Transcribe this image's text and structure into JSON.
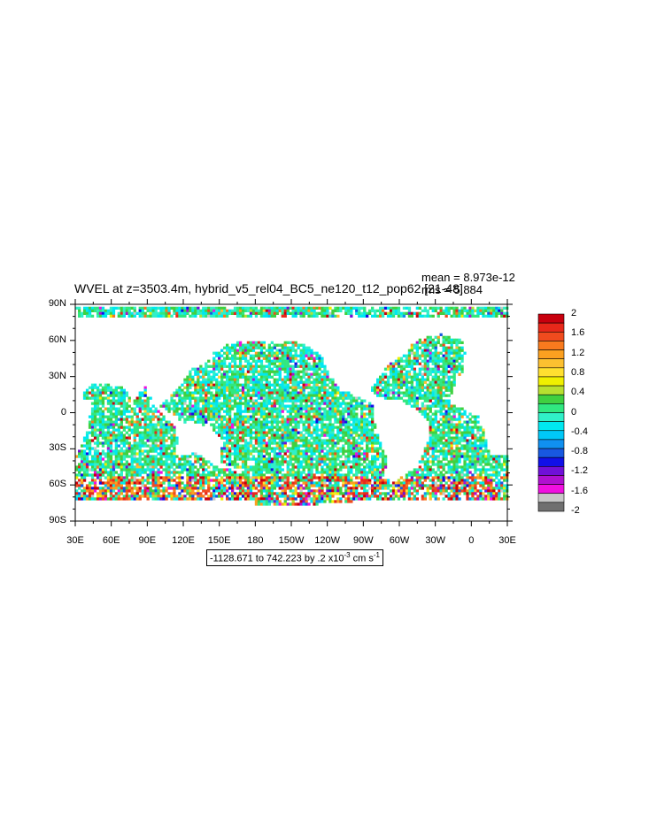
{
  "header": {
    "title": "WVEL at z=3503.4m, hybrid_v5_rel04_BC5_ne120_t12_pop62 [21-48]",
    "mean_text": "mean = 8.973e-12",
    "rms_text": "rms = 5.884"
  },
  "range_text": "-1128.671 to 742.223 by .2 x10",
  "range_exponent": "-3",
  "range_units": " cm s",
  "range_units_exponent": "-1",
  "chart_data": {
    "type": "heatmap",
    "title": "WVEL at z=3503.4m, hybrid_v5_rel04_BC5_ne120_t12_pop62 [21-48]",
    "x_ticks": [
      "30E",
      "60E",
      "90E",
      "120E",
      "150E",
      "180",
      "150W",
      "120W",
      "90W",
      "60W",
      "30W",
      "0",
      "30E"
    ],
    "y_ticks": [
      "90N",
      "60N",
      "30N",
      "0",
      "30S",
      "60S",
      "90S"
    ],
    "xlim": [
      30,
      390
    ],
    "ylim": [
      -90,
      90
    ],
    "colorbar": {
      "labels": [
        "2",
        "1.6",
        "1.2",
        "0.8",
        "0.4",
        "0",
        "-0.4",
        "-0.8",
        "-1.2",
        "-1.6",
        "-2"
      ],
      "colors": [
        "#c8000e",
        "#e8281a",
        "#f04b1e",
        "#f87a1e",
        "#fba020",
        "#fcc030",
        "#ffe030",
        "#f0f000",
        "#b8e030",
        "#40d040",
        "#30e880",
        "#30f0c8",
        "#00e8f0",
        "#00c8f8",
        "#1090f0",
        "#1858e0",
        "#1010e8",
        "#7010d8",
        "#b010d0",
        "#f010e0",
        "#c8c8c8",
        "#707070"
      ]
    },
    "mean": "8.973e-12",
    "rms": "5.884"
  }
}
